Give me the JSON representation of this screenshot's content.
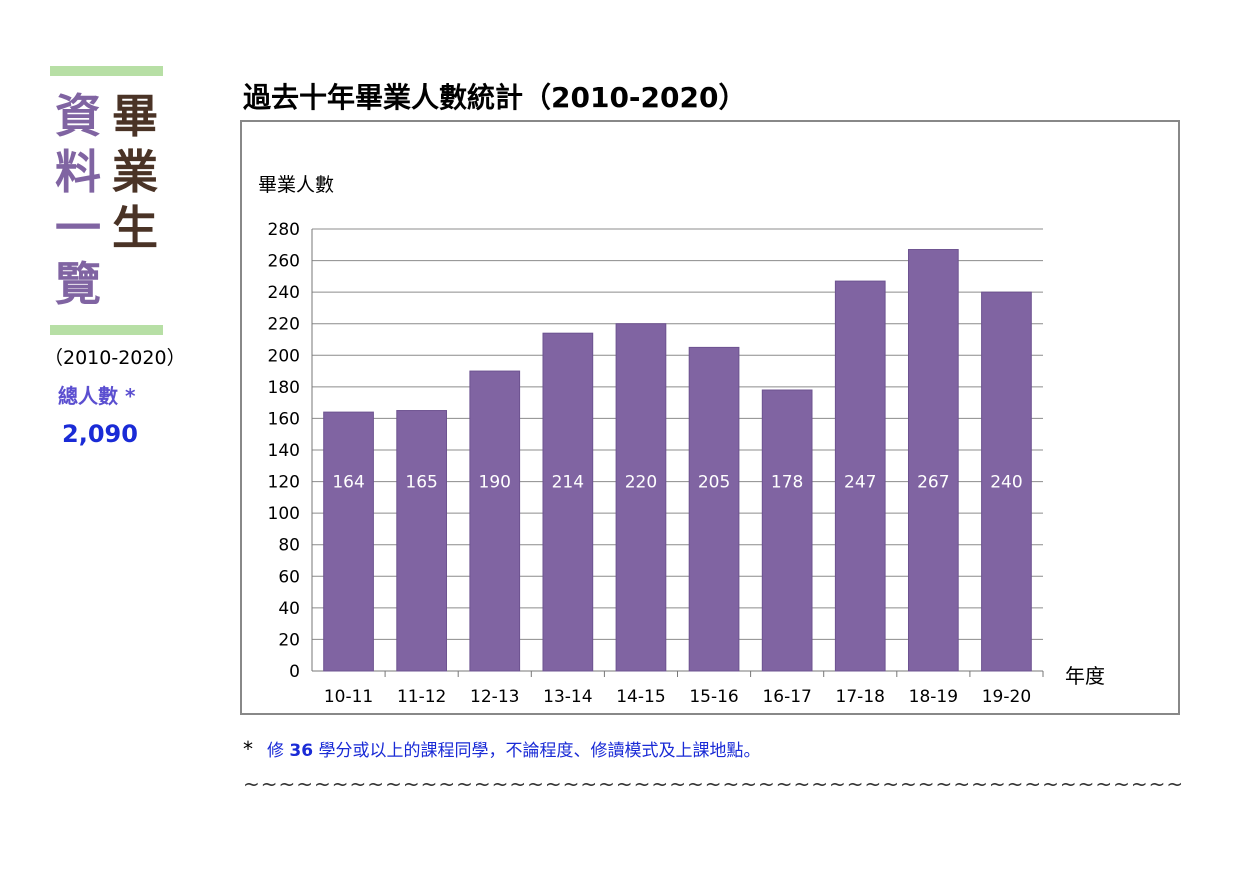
{
  "sidebar": {
    "col1": "畢業生",
    "col2": "資料一覽",
    "range": "（2010-2020）",
    "total_label": "總人數 *",
    "total_value": "2,090",
    "bar_color": "#b7dfa5",
    "col1_color": "#4a3326",
    "col2_color": "#8064a2"
  },
  "chart_data": {
    "type": "bar",
    "title": "過去十年畢業人數統計（2010-2020）",
    "ylabel": "畢業人數",
    "xlabel": "年度",
    "categories": [
      "10-11",
      "11-12",
      "12-13",
      "13-14",
      "14-15",
      "15-16",
      "16-17",
      "17-18",
      "18-19",
      "19-20"
    ],
    "values": [
      164,
      165,
      190,
      214,
      220,
      205,
      178,
      247,
      267,
      240
    ],
    "ylim": [
      0,
      280
    ],
    "yticks": [
      0,
      20,
      40,
      60,
      80,
      100,
      120,
      140,
      160,
      180,
      200,
      220,
      240,
      260,
      280
    ],
    "grid": true,
    "legend": "none",
    "bar_color": "#8064a2",
    "label_color": "#ffffff",
    "data_labels": [
      "164",
      "165",
      "190",
      "214",
      "220",
      "205",
      "178",
      "247",
      "267",
      "240"
    ]
  },
  "footnote": {
    "star": "*",
    "prefix": "修 ",
    "bold": "36",
    "suffix": " 學分或以上的課程同學，不論程度、修讀模式及上課地點。"
  },
  "divider": "~~~~~~~~~~~~~~~~~~~~~~~~~~~~~~~~~~~~~~~~~~~~~~~~~~~~~~~~"
}
